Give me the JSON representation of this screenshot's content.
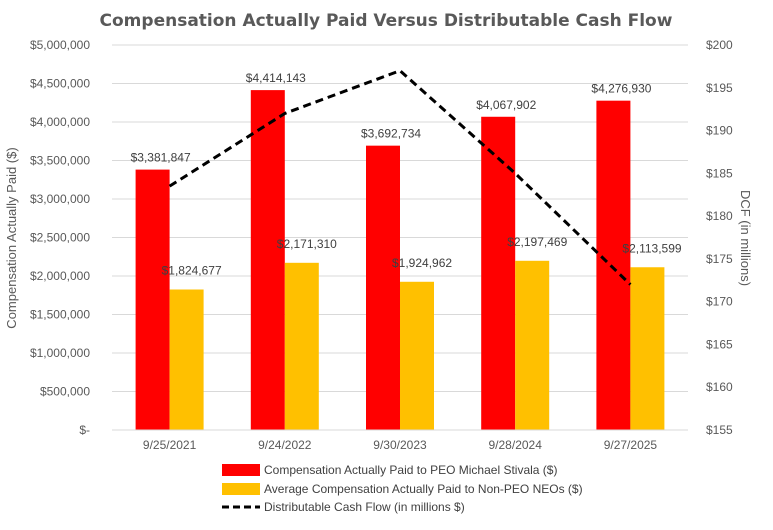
{
  "chart_data": {
    "type": "bar",
    "title": "Compensation Actually Paid Versus Distributable Cash Flow",
    "categories": [
      "9/25/2021",
      "9/24/2022",
      "9/30/2023",
      "9/28/2024",
      "9/27/2025"
    ],
    "ylabel": "Compensation Actually Paid ($)",
    "y2label": "DCF (in millions)",
    "ylim": [
      0,
      5000000
    ],
    "y2lim": [
      155,
      200
    ],
    "yticks": [
      0,
      500000,
      1000000,
      1500000,
      2000000,
      2500000,
      3000000,
      3500000,
      4000000,
      4500000,
      5000000
    ],
    "ytick_labels": [
      "$-",
      "$500,000",
      "$1,000,000",
      "$1,500,000",
      "$2,000,000",
      "$2,500,000",
      "$3,000,000",
      "$3,500,000",
      "$4,000,000",
      "$4,500,000",
      "$5,000,000"
    ],
    "y2ticks": [
      155,
      160,
      165,
      170,
      175,
      180,
      185,
      190,
      195,
      200
    ],
    "y2tick_labels": [
      "$155",
      "$160",
      "$165",
      "$170",
      "$175",
      "$180",
      "$185",
      "$190",
      "$195",
      "$200"
    ],
    "series": [
      {
        "name": "Compensation Actually Paid to PEO Michael Stivala ($)",
        "kind": "bar",
        "axis": "left",
        "color": "#ff0000",
        "values": [
          3381847,
          4414143,
          3692734,
          4067902,
          4276930
        ],
        "labels": [
          "$3,381,847",
          "$4,414,143",
          "$3,692,734",
          "$4,067,902",
          "$4,276,930"
        ]
      },
      {
        "name": "Average Compensation Actually Paid to Non-PEO NEOs ($)",
        "kind": "bar",
        "axis": "left",
        "color": "#ffc000",
        "values": [
          1824677,
          2171310,
          1924962,
          2197469,
          2113599
        ],
        "labels": [
          "$1,824,677",
          "$2,171,310",
          "$1,924,962",
          "$2,197,469",
          "$2,113,599"
        ]
      },
      {
        "name": "Distributable Cash Flow (in millions $)",
        "kind": "line",
        "axis": "right",
        "style": "dashed",
        "color": "#000000",
        "values": [
          183.5,
          192,
          197,
          185,
          172
        ]
      }
    ],
    "legend": "bottom"
  }
}
